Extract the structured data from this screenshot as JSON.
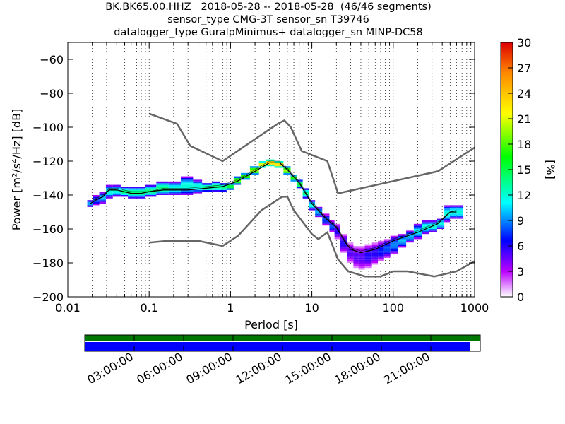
{
  "chart_data": {
    "type": "heatmap",
    "title_lines": [
      "BK.BK65.00.HHZ   2018-05-28 -- 2018-05-28  (46/46 segments)",
      "sensor_type CMG-3T sensor_sn T39746",
      "datalogger_type GuralpMinimus+ datalogger_sn MINP-DC58"
    ],
    "xlabel": "Period [s]",
    "ylabel": "Power [m²/s⁴/Hz] [dB]",
    "xscale": "log",
    "xlim": [
      0.01,
      1000
    ],
    "ylim": [
      -200,
      -50
    ],
    "x_ticks": [
      {
        "value": 0.01,
        "label": "0.01"
      },
      {
        "value": 0.1,
        "label": "0.1"
      },
      {
        "value": 1,
        "label": "1"
      },
      {
        "value": 10,
        "label": "10"
      },
      {
        "value": 100,
        "label": "100"
      },
      {
        "value": 1000,
        "label": "1000"
      }
    ],
    "y_ticks": [
      {
        "value": -60,
        "label": "−60"
      },
      {
        "value": -80,
        "label": "−80"
      },
      {
        "value": -100,
        "label": "−100"
      },
      {
        "value": -120,
        "label": "−120"
      },
      {
        "value": -140,
        "label": "−140"
      },
      {
        "value": -160,
        "label": "−160"
      },
      {
        "value": -180,
        "label": "−180"
      },
      {
        "value": -200,
        "label": "−200"
      }
    ],
    "grid": "dotted vertical",
    "colorbar": {
      "label": "[%]",
      "range": [
        0,
        30
      ],
      "ticks": [
        {
          "value": 0,
          "label": "0"
        },
        {
          "value": 3,
          "label": "3"
        },
        {
          "value": 6,
          "label": "6"
        },
        {
          "value": 9,
          "label": "9"
        },
        {
          "value": 12,
          "label": "12"
        },
        {
          "value": 15,
          "label": "15"
        },
        {
          "value": 18,
          "label": "18"
        },
        {
          "value": 21,
          "label": "21"
        },
        {
          "value": 24,
          "label": "24"
        },
        {
          "value": 27,
          "label": "27"
        },
        {
          "value": 30,
          "label": "30"
        }
      ]
    },
    "noise_models": {
      "high": [
        [
          0.1,
          -92
        ],
        [
          0.22,
          -98
        ],
        [
          0.32,
          -111
        ],
        [
          0.8,
          -120
        ],
        [
          3.8,
          -98
        ],
        [
          4.6,
          -96
        ],
        [
          5.5,
          -100
        ],
        [
          7.5,
          -114
        ],
        [
          15.5,
          -120
        ],
        [
          21,
          -139
        ],
        [
          354,
          -126
        ],
        [
          1000,
          -112
        ]
      ],
      "low": [
        [
          0.1,
          -168
        ],
        [
          0.17,
          -167
        ],
        [
          0.4,
          -167
        ],
        [
          0.8,
          -170
        ],
        [
          1.24,
          -164
        ],
        [
          2.4,
          -149
        ],
        [
          4.3,
          -141
        ],
        [
          5,
          -141
        ],
        [
          6,
          -149
        ],
        [
          10,
          -163
        ],
        [
          12,
          -166
        ],
        [
          15.5,
          -162
        ],
        [
          21,
          -178
        ],
        [
          28,
          -185
        ],
        [
          45,
          -188
        ],
        [
          70,
          -188
        ],
        [
          100,
          -185
        ],
        [
          150,
          -185
        ],
        [
          320,
          -188
        ],
        [
          600,
          -185
        ],
        [
          1000,
          -179
        ]
      ]
    },
    "mean_curve": [
      [
        0.019,
        -145
      ],
      [
        0.022,
        -143
      ],
      [
        0.027,
        -141
      ],
      [
        0.032,
        -137
      ],
      [
        0.04,
        -137
      ],
      [
        0.06,
        -139
      ],
      [
        0.08,
        -139
      ],
      [
        0.1,
        -138
      ],
      [
        0.15,
        -137
      ],
      [
        0.3,
        -137
      ],
      [
        0.5,
        -136
      ],
      [
        0.8,
        -135
      ],
      [
        1.2,
        -132
      ],
      [
        2,
        -126
      ],
      [
        3,
        -121
      ],
      [
        4,
        -121
      ],
      [
        5,
        -125
      ],
      [
        7,
        -133
      ],
      [
        10,
        -145
      ],
      [
        15,
        -154
      ],
      [
        20,
        -159
      ],
      [
        25,
        -167
      ],
      [
        30,
        -172
      ],
      [
        40,
        -174
      ],
      [
        60,
        -172
      ],
      [
        100,
        -167
      ],
      [
        200,
        -162
      ],
      [
        350,
        -157
      ],
      [
        500,
        -150
      ],
      [
        600,
        -150
      ]
    ],
    "mode_curve": [
      [
        0.019,
        -144
      ],
      [
        0.022,
        -142
      ],
      [
        0.027,
        -140
      ],
      [
        0.032,
        -136
      ],
      [
        0.04,
        -136
      ],
      [
        0.06,
        -138
      ],
      [
        0.08,
        -138
      ],
      [
        0.1,
        -138
      ],
      [
        0.15,
        -136
      ],
      [
        0.3,
        -136
      ],
      [
        0.5,
        -135
      ],
      [
        0.8,
        -134
      ],
      [
        1.2,
        -131
      ],
      [
        2,
        -125
      ],
      [
        3,
        -120
      ],
      [
        4,
        -120
      ],
      [
        5,
        -124
      ],
      [
        7,
        -132
      ],
      [
        10,
        -144
      ],
      [
        15,
        -153
      ],
      [
        20,
        -158
      ],
      [
        25,
        -166
      ],
      [
        30,
        -171
      ],
      [
        40,
        -173
      ],
      [
        60,
        -171
      ],
      [
        100,
        -166
      ],
      [
        200,
        -161
      ],
      [
        350,
        -156
      ],
      [
        500,
        -150
      ],
      [
        600,
        -149
      ]
    ],
    "density_band": [
      {
        "period": 0.019,
        "lo": -147,
        "hi": -143,
        "peak": 10
      },
      {
        "period": 0.022,
        "lo": -146,
        "hi": -140,
        "peak": 8
      },
      {
        "period": 0.027,
        "lo": -145,
        "hi": -138,
        "peak": 10
      },
      {
        "period": 0.032,
        "lo": -142,
        "hi": -134,
        "peak": 12
      },
      {
        "period": 0.04,
        "lo": -141,
        "hi": -134,
        "peak": 12
      },
      {
        "period": 0.05,
        "lo": -141,
        "hi": -135,
        "peak": 14
      },
      {
        "period": 0.06,
        "lo": -142,
        "hi": -135,
        "peak": 14
      },
      {
        "period": 0.08,
        "lo": -142,
        "hi": -135,
        "peak": 14
      },
      {
        "period": 0.1,
        "lo": -141,
        "hi": -134,
        "peak": 14
      },
      {
        "period": 0.15,
        "lo": -140,
        "hi": -132,
        "peak": 14
      },
      {
        "period": 0.2,
        "lo": -140,
        "hi": -132,
        "peak": 12
      },
      {
        "period": 0.3,
        "lo": -140,
        "hi": -129,
        "peak": 12
      },
      {
        "period": 0.4,
        "lo": -139,
        "hi": -131,
        "peak": 12
      },
      {
        "period": 0.5,
        "lo": -138,
        "hi": -133,
        "peak": 14
      },
      {
        "period": 0.7,
        "lo": -138,
        "hi": -132,
        "peak": 14
      },
      {
        "period": 0.8,
        "lo": -138,
        "hi": -133,
        "peak": 14
      },
      {
        "period": 1,
        "lo": -137,
        "hi": -133,
        "peak": 16
      },
      {
        "period": 1.2,
        "lo": -134,
        "hi": -129,
        "peak": 18
      },
      {
        "period": 1.5,
        "lo": -131,
        "hi": -127,
        "peak": 18
      },
      {
        "period": 2,
        "lo": -128,
        "hi": -123,
        "peak": 20
      },
      {
        "period": 2.5,
        "lo": -124,
        "hi": -120,
        "peak": 22
      },
      {
        "period": 3,
        "lo": -123,
        "hi": -119,
        "peak": 24
      },
      {
        "period": 4,
        "lo": -124,
        "hi": -120,
        "peak": 24
      },
      {
        "period": 5,
        "lo": -128,
        "hi": -123,
        "peak": 20
      },
      {
        "period": 6,
        "lo": -132,
        "hi": -128,
        "peak": 18
      },
      {
        "period": 7,
        "lo": -136,
        "hi": -131,
        "peak": 16
      },
      {
        "period": 8.5,
        "lo": -142,
        "hi": -136,
        "peak": 14
      },
      {
        "period": 10,
        "lo": -149,
        "hi": -143,
        "peak": 12
      },
      {
        "period": 12,
        "lo": -153,
        "hi": -147,
        "peak": 10
      },
      {
        "period": 15,
        "lo": -158,
        "hi": -151,
        "peak": 8
      },
      {
        "period": 18,
        "lo": -162,
        "hi": -155,
        "peak": 8
      },
      {
        "period": 20,
        "lo": -166,
        "hi": -157,
        "peak": 6
      },
      {
        "period": 25,
        "lo": -174,
        "hi": -163,
        "peak": 6
      },
      {
        "period": 30,
        "lo": -180,
        "hi": -168,
        "peak": 5
      },
      {
        "period": 35,
        "lo": -183,
        "hi": -170,
        "peak": 5
      },
      {
        "period": 40,
        "lo": -184,
        "hi": -170,
        "peak": 5
      },
      {
        "period": 50,
        "lo": -183,
        "hi": -169,
        "peak": 6
      },
      {
        "period": 60,
        "lo": -181,
        "hi": -168,
        "peak": 6
      },
      {
        "period": 70,
        "lo": -179,
        "hi": -167,
        "peak": 7
      },
      {
        "period": 85,
        "lo": -177,
        "hi": -166,
        "peak": 8
      },
      {
        "period": 100,
        "lo": -175,
        "hi": -164,
        "peak": 9
      },
      {
        "period": 130,
        "lo": -171,
        "hi": -163,
        "peak": 10
      },
      {
        "period": 160,
        "lo": -168,
        "hi": -161,
        "peak": 10
      },
      {
        "period": 200,
        "lo": -166,
        "hi": -157,
        "peak": 11
      },
      {
        "period": 250,
        "lo": -163,
        "hi": -155,
        "peak": 12
      },
      {
        "period": 300,
        "lo": -162,
        "hi": -155,
        "peak": 12
      },
      {
        "period": 400,
        "lo": -160,
        "hi": -154,
        "peak": 12
      },
      {
        "period": 450,
        "lo": -156,
        "hi": -146,
        "peak": 12
      },
      {
        "period": 550,
        "lo": -154,
        "hi": -146,
        "peak": 12
      },
      {
        "period": 650,
        "lo": -154,
        "hi": -146,
        "peak": 12
      }
    ],
    "timeline": {
      "tick_labels": [
        "03:00:00",
        "06:00:00",
        "09:00:00",
        "12:00:00",
        "15:00:00",
        "18:00:00",
        "21:00:00"
      ],
      "data_available_fraction": 1.0,
      "processed_fraction": 0.975,
      "available_color": "#007700",
      "processed_color": "#0000ff"
    }
  }
}
